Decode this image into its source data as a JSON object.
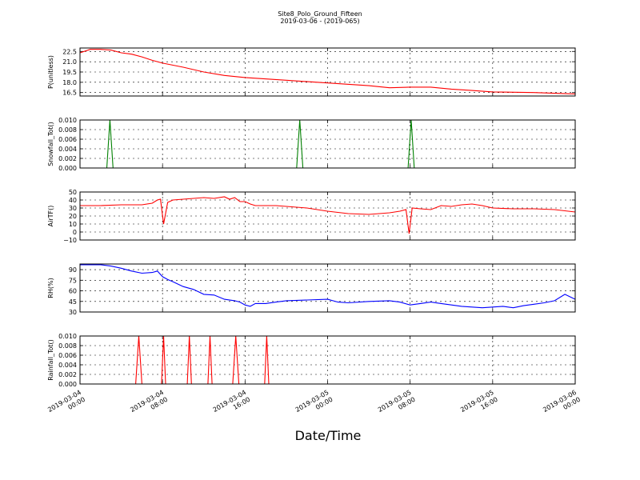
{
  "figure": {
    "title_line1": "Site8_Polo_Ground_Fifteen",
    "title_line2": "2019-03-06 - (2019-065)",
    "xlabel": "Date/Time",
    "x_ticks": [
      {
        "lines": [
          "2019-03-04",
          "00:00"
        ],
        "t": 0
      },
      {
        "lines": [
          "2019-03-04",
          "08:00"
        ],
        "t": 8
      },
      {
        "lines": [
          "2019-03-04",
          "16:00"
        ],
        "t": 16
      },
      {
        "lines": [
          "2019-03-05",
          "00:00"
        ],
        "t": 24
      },
      {
        "lines": [
          "2019-03-05",
          "08:00"
        ],
        "t": 32
      },
      {
        "lines": [
          "2019-03-05",
          "16:00"
        ],
        "t": 40
      },
      {
        "lines": [
          "2019-03-06",
          "00:00"
        ],
        "t": 48
      }
    ]
  },
  "chart_data": [
    {
      "type": "line",
      "ylabel": "P(unitless)",
      "color": "#ff0000",
      "ylim": [
        16.0,
        23.0
      ],
      "yticks": [
        "16.5",
        "18.0",
        "19.5",
        "21.0",
        "22.5"
      ],
      "ytick_values": [
        16.5,
        18.0,
        19.5,
        21.0,
        22.5
      ],
      "x": [
        0,
        1,
        2,
        3,
        4,
        5,
        6,
        7,
        8,
        10,
        12,
        14,
        16,
        20,
        24,
        28,
        30,
        32,
        34,
        36,
        38,
        40,
        44,
        48
      ],
      "values": [
        22.3,
        22.8,
        22.8,
        22.7,
        22.3,
        22.1,
        21.7,
        21.2,
        20.8,
        20.2,
        19.5,
        19.0,
        18.7,
        18.3,
        17.9,
        17.5,
        17.2,
        17.3,
        17.3,
        17.0,
        16.8,
        16.6,
        16.5,
        16.3
      ]
    },
    {
      "type": "line",
      "ylabel": "Snowfall_Tot()",
      "color": "#008000",
      "ylim": [
        0.0,
        0.01
      ],
      "yticks": [
        "0.000",
        "0.002",
        "0.004",
        "0.006",
        "0.008",
        "0.010"
      ],
      "ytick_values": [
        0.0,
        0.002,
        0.004,
        0.006,
        0.008,
        0.01
      ],
      "x": [
        0,
        2.6,
        2.9,
        3.2,
        21.0,
        21.3,
        21.6,
        31.8,
        32.1,
        32.4,
        48
      ],
      "values": [
        0,
        0,
        0.01,
        0,
        0,
        0.01,
        0,
        0,
        0.01,
        0,
        0
      ]
    },
    {
      "type": "line",
      "ylabel": "AirTF()",
      "color": "#ff0000",
      "ylim": [
        -10,
        50
      ],
      "yticks": [
        "−10",
        "0",
        "10",
        "20",
        "30",
        "40",
        "50"
      ],
      "ytick_values": [
        -10,
        0,
        10,
        20,
        30,
        40,
        50
      ],
      "x": [
        0,
        2,
        4,
        6,
        7,
        7.5,
        7.8,
        8.1,
        8.5,
        9,
        10,
        11,
        12,
        13,
        14,
        14.5,
        15,
        15.5,
        16,
        16.5,
        17,
        18,
        19,
        20,
        22,
        24,
        26,
        28,
        30,
        31,
        31.6,
        31.9,
        32.2,
        33,
        34,
        35,
        36,
        37,
        38,
        39,
        40,
        42,
        44,
        46,
        48
      ],
      "values": [
        33,
        33,
        34,
        34,
        36,
        40,
        41,
        10,
        37,
        40,
        41,
        42,
        43,
        42,
        44,
        41,
        43,
        38,
        38,
        35,
        33,
        33,
        33,
        32,
        30,
        26,
        23,
        22,
        24,
        26,
        28,
        -2,
        30,
        29,
        28,
        33,
        32,
        34,
        35,
        33,
        30,
        29,
        29,
        28,
        25
      ]
    },
    {
      "type": "line",
      "ylabel": "RH(%)",
      "color": "#0000ff",
      "ylim": [
        30,
        98
      ],
      "yticks": [
        "30",
        "45",
        "60",
        "75",
        "90"
      ],
      "ytick_values": [
        30,
        45,
        60,
        75,
        90
      ],
      "x": [
        0,
        2,
        3,
        4,
        5,
        6,
        7,
        7.5,
        8,
        8.5,
        9,
        10,
        11,
        12,
        13,
        14,
        15,
        15.5,
        16,
        16.5,
        17,
        18,
        19,
        20,
        22,
        24,
        25,
        26,
        28,
        30,
        31,
        32,
        33,
        34,
        35,
        36,
        37,
        38,
        39,
        40,
        41,
        42,
        43,
        44,
        45,
        46,
        47,
        48
      ],
      "values": [
        97,
        97,
        95,
        92,
        88,
        85,
        86,
        88,
        80,
        76,
        73,
        66,
        62,
        55,
        54,
        48,
        46,
        44,
        40,
        38,
        42,
        42,
        44,
        46,
        47,
        48,
        44,
        43,
        45,
        46,
        44,
        40,
        42,
        44,
        42,
        40,
        38,
        37,
        36,
        37,
        38,
        36,
        39,
        41,
        43,
        46,
        55,
        48
      ]
    },
    {
      "type": "line",
      "ylabel": "Rainfall_Tot()",
      "color": "#ff0000",
      "ylim": [
        0.0,
        0.01
      ],
      "yticks": [
        "0.000",
        "0.002",
        "0.004",
        "0.006",
        "0.008",
        "0.010"
      ],
      "ytick_values": [
        0.0,
        0.002,
        0.004,
        0.006,
        0.008,
        0.01
      ],
      "x": [
        0,
        5.4,
        5.7,
        6.0,
        7.9,
        8.1,
        8.3,
        10.4,
        10.6,
        10.8,
        12.4,
        12.6,
        12.8,
        14.8,
        15.1,
        15.4,
        17.9,
        18.1,
        18.3,
        48
      ],
      "values": [
        0,
        0,
        0.01,
        0,
        0,
        0.01,
        0,
        0,
        0.01,
        0,
        0,
        0.01,
        0,
        0,
        0.01,
        0,
        0,
        0.01,
        0,
        0
      ]
    }
  ]
}
